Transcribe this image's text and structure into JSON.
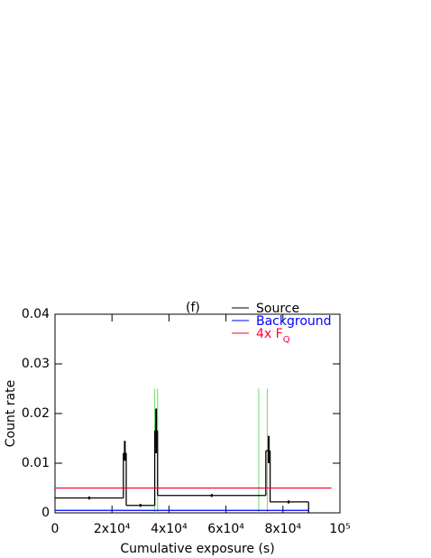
{
  "chart_data": {
    "type": "step",
    "annotation": "(f)",
    "xlabel": "Cumulative exposure (s)",
    "ylabel": "Count rate",
    "xlim": [
      0,
      100000
    ],
    "ylim": [
      0,
      0.04
    ],
    "xticks": [
      0,
      {
        "value": 20000,
        "label": "2x10⁴"
      },
      {
        "value": 40000,
        "label": "4x10⁴"
      },
      {
        "value": 60000,
        "label": "6x10⁴"
      },
      {
        "value": 80000,
        "label": "8x10⁴"
      },
      {
        "value": 100000,
        "label": "10⁵"
      }
    ],
    "yticks": [
      0,
      0.01,
      0.02,
      0.03,
      0.04
    ],
    "series": [
      {
        "name": "Source",
        "color": "#000000",
        "edges": [
          0,
          24000,
          25000,
          35000,
          36000,
          74000,
          75500,
          89000
        ],
        "values": [
          0.003,
          0.012,
          0.0015,
          0.0165,
          0.0035,
          0.0125,
          0.0022
        ],
        "error_bars": {
          "x": [
            12000,
            24500,
            30000,
            35500,
            55000,
            75000,
            82000
          ],
          "low": [
            0.0027,
            0.0105,
            0.0012,
            0.012,
            0.0032,
            0.01,
            0.0019
          ],
          "high": [
            0.0033,
            0.0145,
            0.0018,
            0.021,
            0.0038,
            0.0155,
            0.0025
          ]
        }
      },
      {
        "name": "Background",
        "color": "#0000ff",
        "edges": [
          0,
          89000
        ],
        "values": [
          0.0005
        ]
      },
      {
        "name": "4x F",
        "name_sub": "Q",
        "color": "#ff0033",
        "edges": [
          0,
          97000
        ],
        "values": [
          0.005
        ]
      }
    ],
    "markers": {
      "color": "#66dd66",
      "x": [
        35000,
        36000,
        71500,
        74500
      ],
      "top": 0.025
    }
  }
}
